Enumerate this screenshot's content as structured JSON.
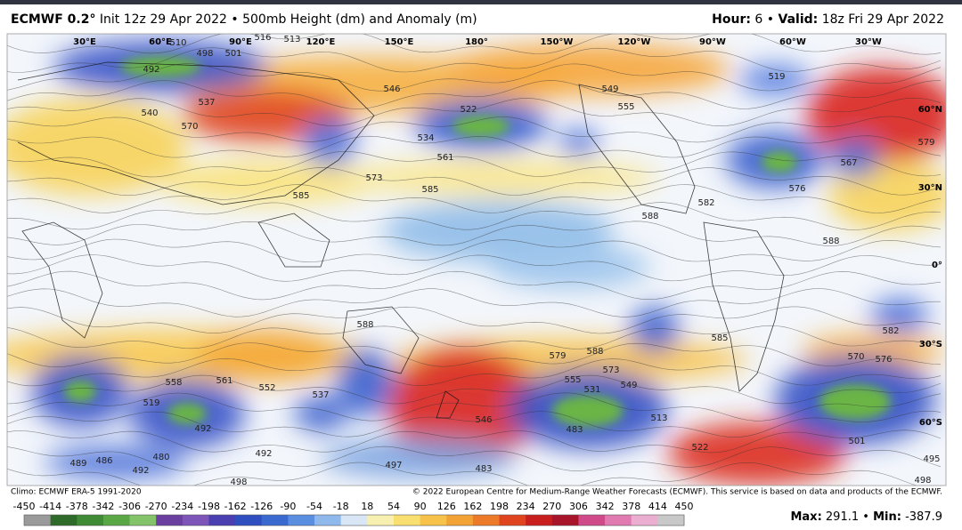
{
  "header": {
    "model": "ECMWF 0.2°",
    "init": "Init 12z 29 Apr 2022",
    "field": "500mb Height (dm) and Anomaly (m)",
    "hour_label": "Hour:",
    "hour": "6",
    "valid_label": "Valid:",
    "valid": "18z Fri 29 Apr 2022"
  },
  "map": {
    "longitude_labels": [
      "30°E",
      "60°E",
      "90°E",
      "120°E",
      "150°E",
      "180°",
      "150°W",
      "120°W",
      "90°W",
      "60°W",
      "30°W"
    ],
    "latitude_labels": [
      "60°N",
      "30°N",
      "0°",
      "30°S",
      "60°S"
    ],
    "contour_labels": [
      510,
      498,
      501,
      516,
      513,
      492,
      540,
      537,
      570,
      546,
      522,
      534,
      561,
      573,
      585,
      585,
      519,
      549,
      555,
      579,
      567,
      576,
      582,
      588,
      588,
      588,
      585,
      588,
      579,
      573,
      558,
      561,
      552,
      519,
      492,
      537,
      546,
      555,
      531,
      549,
      483,
      513,
      501,
      489,
      486,
      492,
      480,
      492,
      497,
      483,
      498,
      498,
      495,
      522,
      570,
      576,
      582
    ]
  },
  "footer": {
    "climo": "Climo: ECMWF ERA-5 1991-2020",
    "copyright": "© 2022 European Centre for Medium-Range Weather Forecasts (ECMWF). This service is based on data and products of the ECMWF."
  },
  "colorbar": {
    "ticks": [
      -450,
      -414,
      -378,
      -342,
      -306,
      -270,
      -234,
      -198,
      -162,
      -126,
      -90,
      -54,
      -18,
      18,
      54,
      90,
      126,
      162,
      198,
      234,
      270,
      306,
      342,
      378,
      414,
      450
    ]
  },
  "stats": {
    "max_label": "Max:",
    "max": 291.1,
    "min_label": "Min:",
    "min": -387.9
  }
}
